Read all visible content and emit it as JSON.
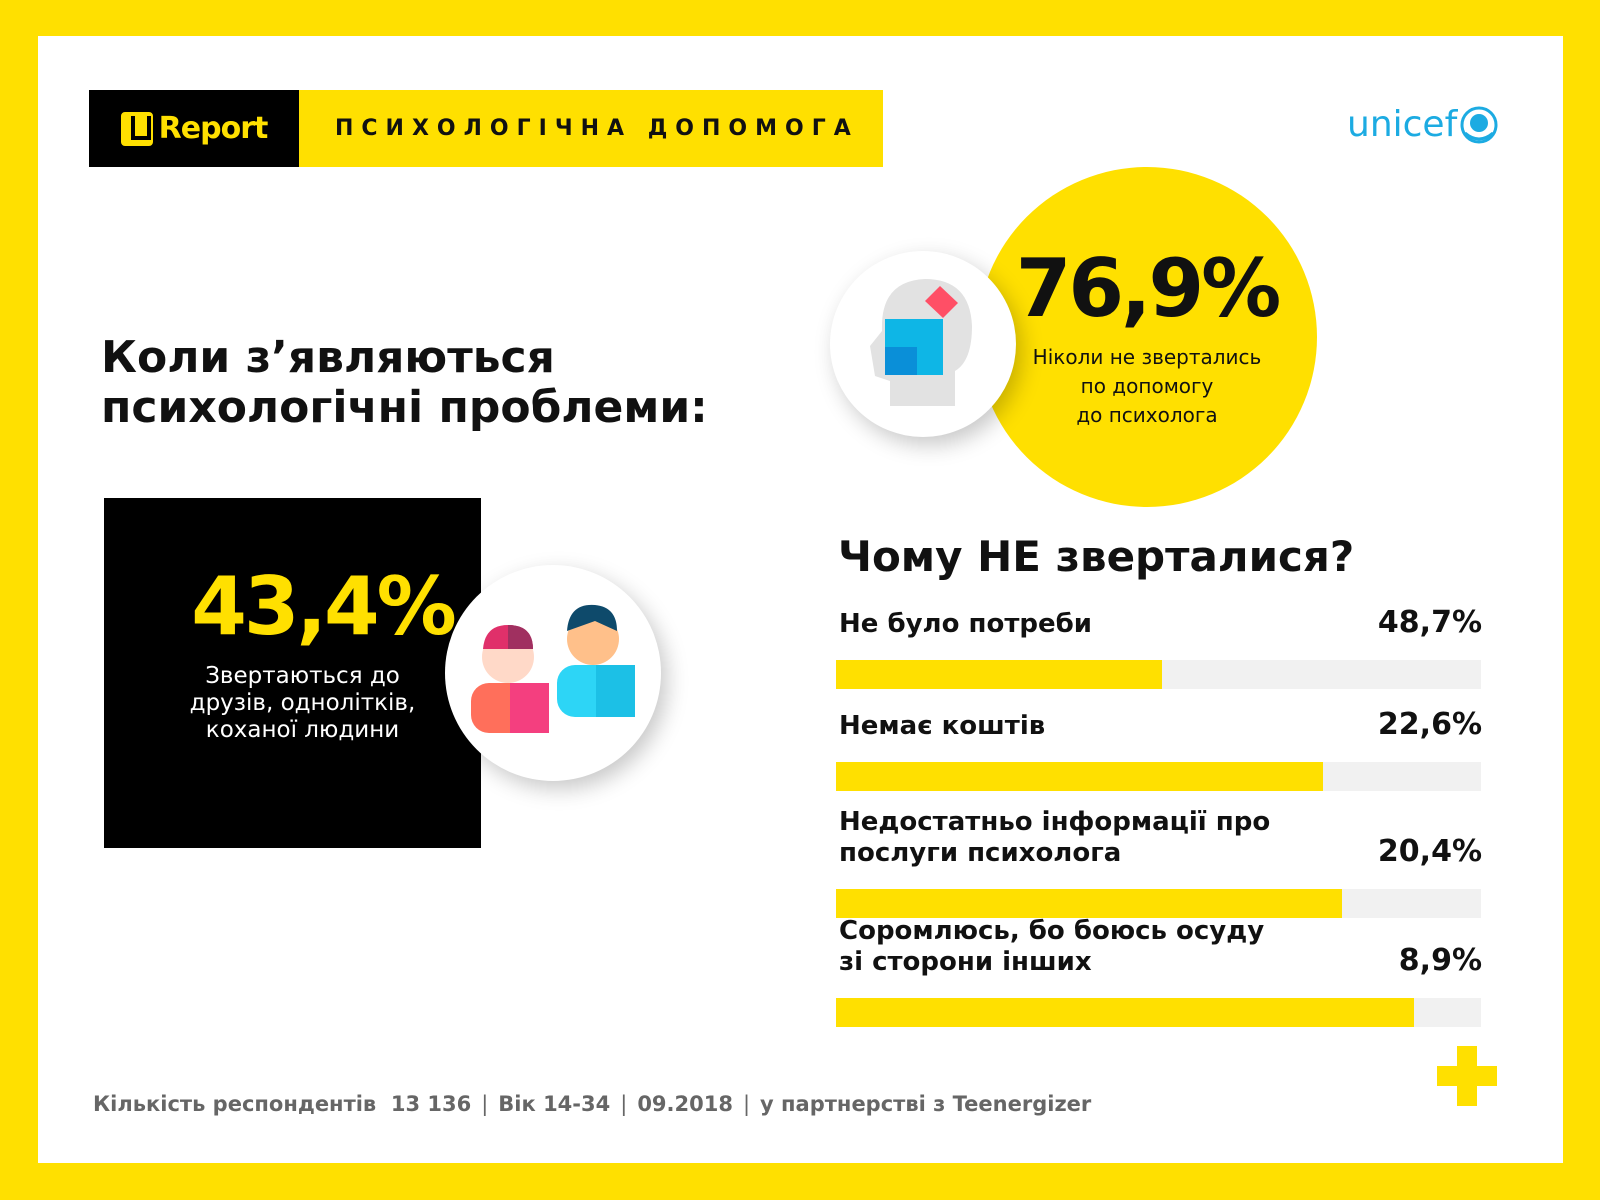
{
  "header": {
    "logo": "U Report",
    "section_title": "ПСИХОЛОГІЧНА ДОПОМОГА",
    "partner_logo": "unicef"
  },
  "title_line1": "Коли з’являються",
  "title_line2": "психологічні проблеми:",
  "friends": {
    "value": "43,4%",
    "caption1": "Звертаються до",
    "caption2": "друзів, однолітків,",
    "caption3": "коханої людини",
    "icon": "people-icon"
  },
  "never": {
    "value": "76,9%",
    "caption1": "Ніколи не звертались",
    "caption2": "по допомогу",
    "caption3": "до психолога",
    "icon": "head-puzzle-icon"
  },
  "chart_data": {
    "type": "bar",
    "title": "Чому НЕ зверталися?",
    "categories": [
      "Не було потреби",
      "Немає коштів",
      "Недостатньо інформації про послуги психолога",
      "Соромлюсь, бо боюсь осуду зі сторони інших"
    ],
    "labels": [
      [
        "Не було потреби"
      ],
      [
        "Немає коштів"
      ],
      [
        "Недостатньо інформації про",
        "послуги психолога"
      ],
      [
        "Соромлюсь, бо боюсь осуду",
        "зі сторони інших"
      ]
    ],
    "value_labels": [
      "48,7%",
      "22,6%",
      "20,4%",
      "8,9%"
    ],
    "values": [
      48.7,
      22.6,
      20.4,
      8.9
    ],
    "bar_fill_fraction": [
      0.506,
      0.755,
      0.785,
      0.896
    ],
    "colors": {
      "fill": "#FFE000",
      "track": "#F1F1F1"
    }
  },
  "footer": {
    "respondents": "Кількість респондентів  13 136",
    "age": "Вік 14-34",
    "date": "09.2018",
    "partner": "у партнерстві з Teenergizer",
    "sep": "|"
  },
  "colors": {
    "brand": "#FFE000",
    "unicef": "#1CABE2"
  }
}
